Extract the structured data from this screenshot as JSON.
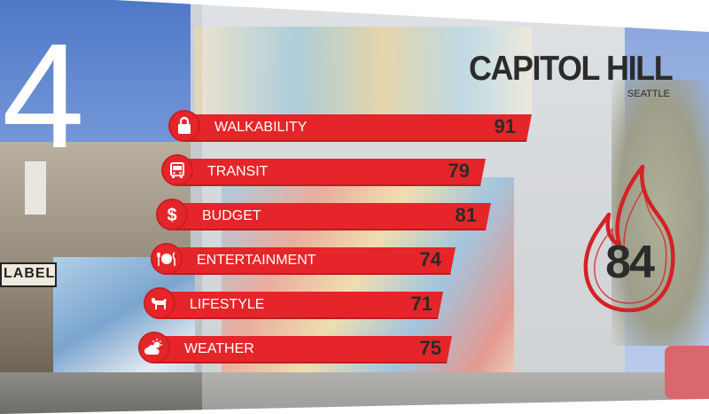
{
  "rank": "4",
  "title": {
    "name": "CAPITOL HILL",
    "city": "SEATTLE"
  },
  "sign_text": "LABEL",
  "colors": {
    "accent": "#e52529",
    "text": "#2b2b2b"
  },
  "overall_score": "84",
  "metrics": [
    {
      "label": "WALKABILITY",
      "value": "91",
      "icon": "lock-icon"
    },
    {
      "label": "TRANSIT",
      "value": "79",
      "icon": "bus-icon"
    },
    {
      "label": "BUDGET",
      "value": "81",
      "icon": "dollar-icon"
    },
    {
      "label": "ENTERTAINMENT",
      "value": "74",
      "icon": "dining-icon"
    },
    {
      "label": "LIFESTYLE",
      "value": "71",
      "icon": "dog-icon"
    },
    {
      "label": "WEATHER",
      "value": "75",
      "icon": "weather-icon"
    }
  ]
}
